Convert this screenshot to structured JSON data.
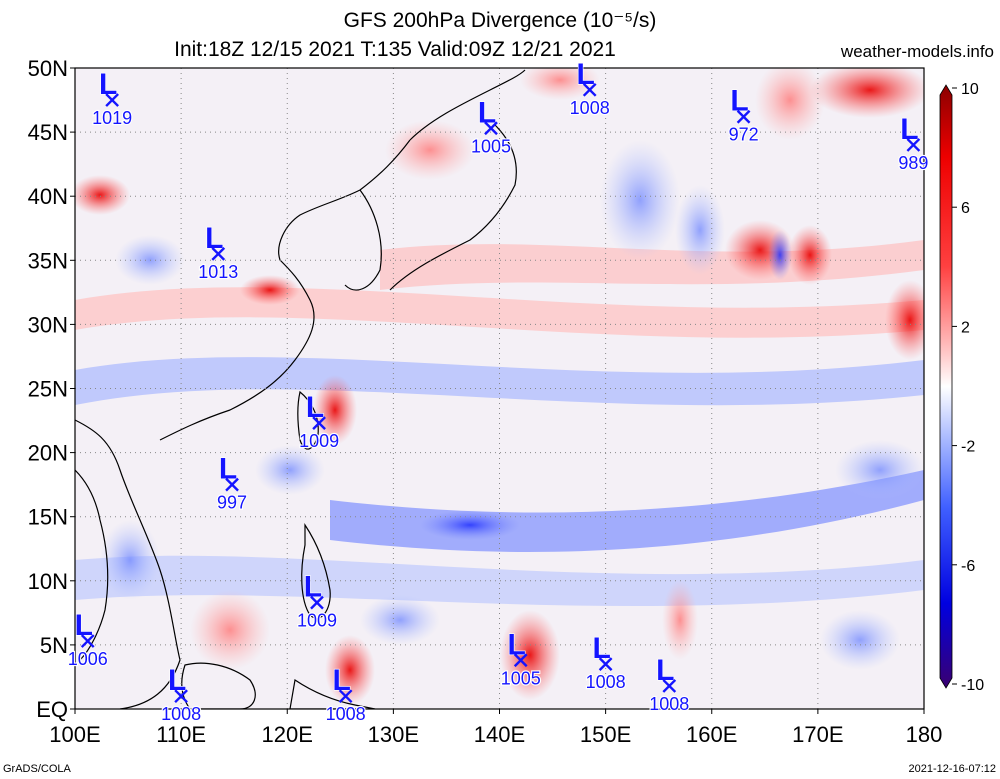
{
  "title_line1": "GFS 200hPa Divergence (10⁻⁵/s)",
  "title_line2": "Init:18Z 12/15 2021 T:135 Valid:09Z 12/21 2021",
  "site": "weather-models.info",
  "footer_left": "GrADS/COLA",
  "footer_right": "2021-12-16-07:12",
  "lat_labels": [
    "50N",
    "45N",
    "40N",
    "35N",
    "30N",
    "25N",
    "20N",
    "15N",
    "10N",
    "5N",
    "EQ"
  ],
  "lon_labels": [
    "100E",
    "110E",
    "120E",
    "130E",
    "140E",
    "150E",
    "160E",
    "170E",
    "180"
  ],
  "colorbar": {
    "labels": [
      "10",
      "6",
      "2",
      "-2",
      "-6",
      "-10"
    ],
    "values": [
      10,
      6,
      2,
      -2,
      -6,
      -10
    ],
    "colors": [
      "#4b0082",
      "#0000ff",
      "#4d6bff",
      "#b3c2ff",
      "#ffffff",
      "#ffb3b3",
      "#ff4d4d",
      "#ff0000",
      "#b00000"
    ]
  },
  "lows": [
    {
      "label": "L",
      "value": "1019",
      "lon": 103.5,
      "lat": 47.5
    },
    {
      "label": "L",
      "value": "1005",
      "lon": 139.2,
      "lat": 45.3
    },
    {
      "label": "L",
      "value": "1008",
      "lon": 148.5,
      "lat": 48.3
    },
    {
      "label": "L",
      "value": "972",
      "lon": 163.0,
      "lat": 46.2
    },
    {
      "label": "L",
      "value": "989",
      "lon": 179.0,
      "lat": 44.0
    },
    {
      "label": "L",
      "value": "1013",
      "lon": 113.5,
      "lat": 35.5
    },
    {
      "label": "L",
      "value": "1009",
      "lon": 123.0,
      "lat": 22.3
    },
    {
      "label": "L",
      "value": "997",
      "lon": 114.8,
      "lat": 17.5
    },
    {
      "label": "L",
      "value": "1009",
      "lon": 122.8,
      "lat": 8.3
    },
    {
      "label": "L",
      "value": "1006",
      "lon": 101.2,
      "lat": 5.3
    },
    {
      "label": "L",
      "value": "1008",
      "lon": 110.0,
      "lat": 1.0
    },
    {
      "label": "L",
      "value": "1008",
      "lon": 125.5,
      "lat": 1.0
    },
    {
      "label": "L",
      "value": "1005",
      "lon": 142.0,
      "lat": 3.8
    },
    {
      "label": "L",
      "value": "1008",
      "lon": 150.0,
      "lat": 3.5
    },
    {
      "label": "L",
      "value": "1008",
      "lon": 156.0,
      "lat": 1.8
    }
  ]
}
